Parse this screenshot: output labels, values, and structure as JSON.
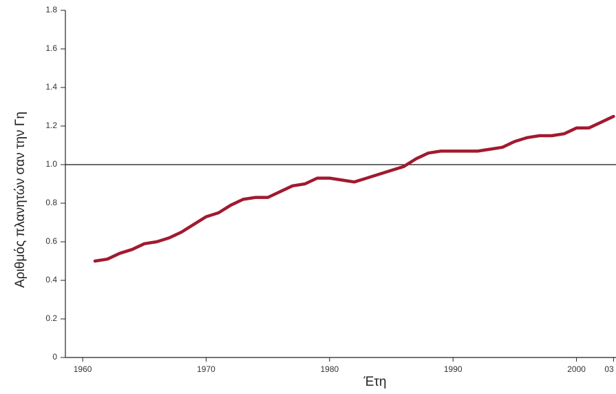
{
  "chart_data": {
    "type": "line",
    "x_label": "Έτη",
    "y_label": "Αριθμός πλανητών σαν την Γη",
    "x": [
      1961,
      1962,
      1963,
      1964,
      1965,
      1966,
      1967,
      1968,
      1969,
      1970,
      1971,
      1972,
      1973,
      1974,
      1975,
      1976,
      1977,
      1978,
      1979,
      1980,
      1981,
      1982,
      1983,
      1984,
      1985,
      1986,
      1987,
      1988,
      1989,
      1990,
      1991,
      1992,
      1993,
      1994,
      1995,
      1996,
      1997,
      1998,
      1999,
      2000,
      2001,
      2002,
      2003
    ],
    "series": [
      {
        "color": "#a11a30",
        "values": [
          0.5,
          0.51,
          0.54,
          0.56,
          0.59,
          0.6,
          0.62,
          0.65,
          0.69,
          0.73,
          0.75,
          0.79,
          0.82,
          0.83,
          0.83,
          0.86,
          0.89,
          0.9,
          0.93,
          0.93,
          0.92,
          0.91,
          0.93,
          0.95,
          0.97,
          0.99,
          1.03,
          1.06,
          1.07,
          1.07,
          1.07,
          1.07,
          1.08,
          1.09,
          1.12,
          1.14,
          1.15,
          1.15,
          1.16,
          1.19,
          1.19,
          1.22,
          1.25
        ]
      }
    ],
    "reference_line": 1,
    "xlim": [
      1958.6,
      2003.2
    ],
    "xticks": [
      1960,
      1970,
      1980,
      1990,
      2000,
      {
        "value": 2003,
        "label": "03"
      }
    ],
    "ylim": [
      0,
      1.8
    ],
    "yticks": [
      0,
      0.2,
      0.4,
      0.6,
      0.8,
      {
        "value": 1,
        "label": "1.0"
      },
      1.2,
      1.4,
      1.6,
      1.8
    ]
  }
}
